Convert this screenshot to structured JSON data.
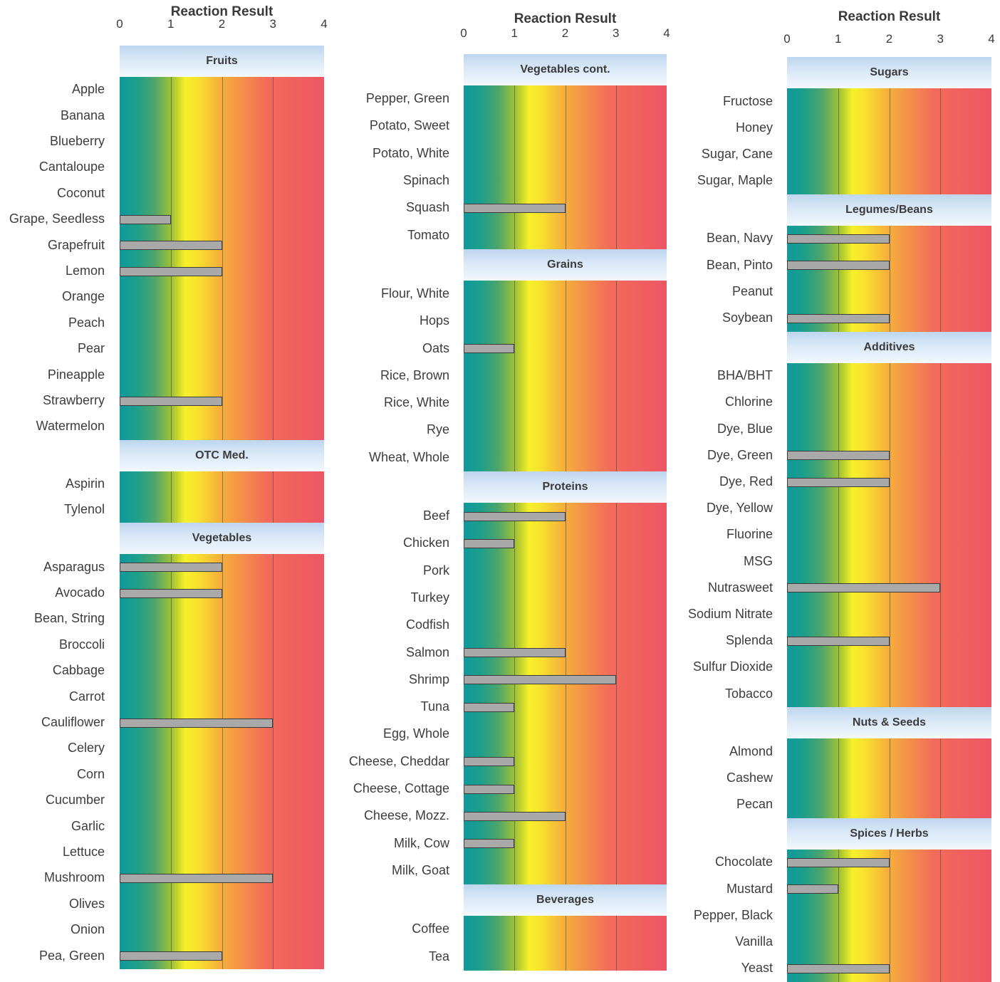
{
  "axis_title": "Reaction Result",
  "ticks": [
    "0",
    "1",
    "2",
    "3",
    "4"
  ],
  "chart_data": [
    {
      "type": "bar",
      "orientation": "horizontal",
      "title": "Reaction Result",
      "xlim": [
        0,
        4
      ],
      "grid": true,
      "sections": [
        {
          "name": "Fruits",
          "items": [
            {
              "label": "Apple",
              "value": 0
            },
            {
              "label": "Banana",
              "value": 0
            },
            {
              "label": "Blueberry",
              "value": 0
            },
            {
              "label": "Cantaloupe",
              "value": 0
            },
            {
              "label": "Coconut",
              "value": 0
            },
            {
              "label": "Grape, Seedless",
              "value": 1
            },
            {
              "label": "Grapefruit",
              "value": 2
            },
            {
              "label": "Lemon",
              "value": 2
            },
            {
              "label": "Orange",
              "value": 0
            },
            {
              "label": "Peach",
              "value": 0
            },
            {
              "label": "Pear",
              "value": 0
            },
            {
              "label": "Pineapple",
              "value": 0
            },
            {
              "label": "Strawberry",
              "value": 2
            },
            {
              "label": "Watermelon",
              "value": 0
            }
          ]
        },
        {
          "name": "OTC Med.",
          "items": [
            {
              "label": "Aspirin",
              "value": 0
            },
            {
              "label": "Tylenol",
              "value": 0
            }
          ]
        },
        {
          "name": "Vegetables",
          "items": [
            {
              "label": "Asparagus",
              "value": 2
            },
            {
              "label": "Avocado",
              "value": 2
            },
            {
              "label": "Bean, String",
              "value": 0
            },
            {
              "label": "Broccoli",
              "value": 0
            },
            {
              "label": "Cabbage",
              "value": 0
            },
            {
              "label": "Carrot",
              "value": 0
            },
            {
              "label": "Cauliflower",
              "value": 3
            },
            {
              "label": "Celery",
              "value": 0
            },
            {
              "label": "Corn",
              "value": 0
            },
            {
              "label": "Cucumber",
              "value": 0
            },
            {
              "label": "Garlic",
              "value": 0
            },
            {
              "label": "Lettuce",
              "value": 0
            },
            {
              "label": "Mushroom",
              "value": 3
            },
            {
              "label": "Olives",
              "value": 0
            },
            {
              "label": "Onion",
              "value": 0
            },
            {
              "label": "Pea, Green",
              "value": 2
            }
          ]
        }
      ]
    },
    {
      "type": "bar",
      "orientation": "horizontal",
      "title": "Reaction Result",
      "xlim": [
        0,
        4
      ],
      "grid": true,
      "sections": [
        {
          "name": "Vegetables cont.",
          "items": [
            {
              "label": "Pepper, Green",
              "value": 0
            },
            {
              "label": "Potato, Sweet",
              "value": 0
            },
            {
              "label": "Potato, White",
              "value": 0
            },
            {
              "label": "Spinach",
              "value": 0
            },
            {
              "label": "Squash",
              "value": 2
            },
            {
              "label": "Tomato",
              "value": 0
            }
          ]
        },
        {
          "name": "Grains",
          "items": [
            {
              "label": "Flour, White",
              "value": 0
            },
            {
              "label": "Hops",
              "value": 0
            },
            {
              "label": "Oats",
              "value": 1
            },
            {
              "label": "Rice, Brown",
              "value": 0
            },
            {
              "label": "Rice, White",
              "value": 0
            },
            {
              "label": "Rye",
              "value": 0
            },
            {
              "label": "Wheat, Whole",
              "value": 0
            }
          ]
        },
        {
          "name": "Proteins",
          "items": [
            {
              "label": "Beef",
              "value": 2
            },
            {
              "label": "Chicken",
              "value": 1
            },
            {
              "label": "Pork",
              "value": 0
            },
            {
              "label": "Turkey",
              "value": 0
            },
            {
              "label": "Codfish",
              "value": 0
            },
            {
              "label": "Salmon",
              "value": 2
            },
            {
              "label": "Shrimp",
              "value": 3
            },
            {
              "label": "Tuna",
              "value": 1
            },
            {
              "label": "Egg, Whole",
              "value": 0
            },
            {
              "label": "Cheese, Cheddar",
              "value": 1
            },
            {
              "label": "Cheese, Cottage",
              "value": 1
            },
            {
              "label": "Cheese, Mozz.",
              "value": 2
            },
            {
              "label": "Milk, Cow",
              "value": 1
            },
            {
              "label": "Milk, Goat",
              "value": 0
            }
          ]
        },
        {
          "name": "Beverages",
          "items": [
            {
              "label": "Coffee",
              "value": 0
            },
            {
              "label": "Tea",
              "value": 0
            }
          ]
        }
      ]
    },
    {
      "type": "bar",
      "orientation": "horizontal",
      "title": "Reaction Result",
      "xlim": [
        0,
        4
      ],
      "grid": true,
      "sections": [
        {
          "name": "Sugars",
          "items": [
            {
              "label": "Fructose",
              "value": 0
            },
            {
              "label": "Honey",
              "value": 0
            },
            {
              "label": "Sugar, Cane",
              "value": 0
            },
            {
              "label": "Sugar, Maple",
              "value": 0
            }
          ]
        },
        {
          "name": "Legumes/Beans",
          "items": [
            {
              "label": "Bean, Navy",
              "value": 2
            },
            {
              "label": "Bean, Pinto",
              "value": 2
            },
            {
              "label": "Peanut",
              "value": 0
            },
            {
              "label": "Soybean",
              "value": 2
            }
          ]
        },
        {
          "name": "Additives",
          "items": [
            {
              "label": "BHA/BHT",
              "value": 0
            },
            {
              "label": "Chlorine",
              "value": 0
            },
            {
              "label": "Dye, Blue",
              "value": 0
            },
            {
              "label": "Dye, Green",
              "value": 2
            },
            {
              "label": "Dye, Red",
              "value": 2
            },
            {
              "label": "Dye, Yellow",
              "value": 0
            },
            {
              "label": "Fluorine",
              "value": 0
            },
            {
              "label": "MSG",
              "value": 0
            },
            {
              "label": "Nutrasweet",
              "value": 3
            },
            {
              "label": "Sodium Nitrate",
              "value": 0
            },
            {
              "label": "Splenda",
              "value": 2
            },
            {
              "label": "Sulfur Dioxide",
              "value": 0
            },
            {
              "label": "Tobacco",
              "value": 0
            }
          ]
        },
        {
          "name": "Nuts & Seeds",
          "items": [
            {
              "label": "Almond",
              "value": 0
            },
            {
              "label": "Cashew",
              "value": 0
            },
            {
              "label": "Pecan",
              "value": 0
            }
          ]
        },
        {
          "name": "Spices / Herbs",
          "items": [
            {
              "label": "Chocolate",
              "value": 2
            },
            {
              "label": "Mustard",
              "value": 1
            },
            {
              "label": "Pepper, Black",
              "value": 0
            },
            {
              "label": "Vanilla",
              "value": 0
            },
            {
              "label": "Yeast",
              "value": 2
            }
          ]
        }
      ]
    }
  ]
}
